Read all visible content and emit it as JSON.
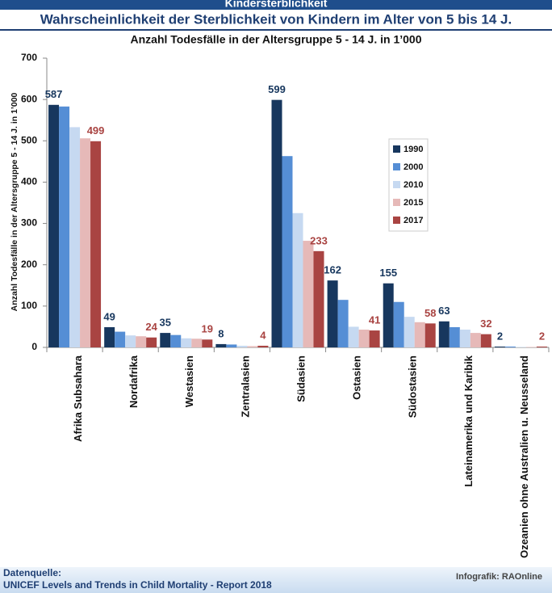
{
  "banner": "Kindersterblichkeit",
  "footer": {
    "source_label": "Datenquelle:",
    "source": "UNICEF Levels and Trends in Child Mortality - Report 2018",
    "credit": "Infografik: RAOnline"
  },
  "chart_data": {
    "type": "bar",
    "title": "Wahrscheinlichkeit der Sterblichkeit von Kindern im Alter von 5 bis 14 J.",
    "subtitle": "Anzahl Todesfälle in der Altersgruppe 5 - 14 J. in 1’000",
    "ylabel": "Anzahl Todesfälle in der Altersgruppe 5 - 14 J. in 1’000",
    "categories": [
      "Afrika Subsahara",
      "Nordafrika",
      "Westasien",
      "Zentralasien",
      "Südasien",
      "Ostasien",
      "Südostasien",
      "Lateinamerika und Karibik",
      "Ozeanien ohne Australien u. Neusseland"
    ],
    "series": [
      {
        "name": "1990",
        "color": "#17375e",
        "labels": true,
        "values": [
          587,
          49,
          35,
          8,
          599,
          162,
          155,
          63,
          2
        ]
      },
      {
        "name": "2000",
        "color": "#558ed5",
        "labels": false,
        "values": [
          583,
          38,
          30,
          7,
          463,
          115,
          110,
          49,
          2
        ]
      },
      {
        "name": "2010",
        "color": "#c6d9f1",
        "labels": false,
        "values": [
          533,
          29,
          22,
          4,
          325,
          50,
          74,
          43,
          1
        ]
      },
      {
        "name": "2015",
        "color": "#e6b9b8",
        "labels": false,
        "values": [
          506,
          27,
          21,
          3,
          258,
          43,
          61,
          35,
          1
        ]
      },
      {
        "name": "2017",
        "color": "#a94442",
        "labels": true,
        "values": [
          499,
          24,
          19,
          4,
          233,
          41,
          58,
          32,
          2
        ]
      }
    ],
    "ylim": [
      0,
      700
    ],
    "yticks": [
      0,
      100,
      200,
      300,
      400,
      500,
      600,
      700
    ],
    "grid": false,
    "legend": "upper-right"
  }
}
